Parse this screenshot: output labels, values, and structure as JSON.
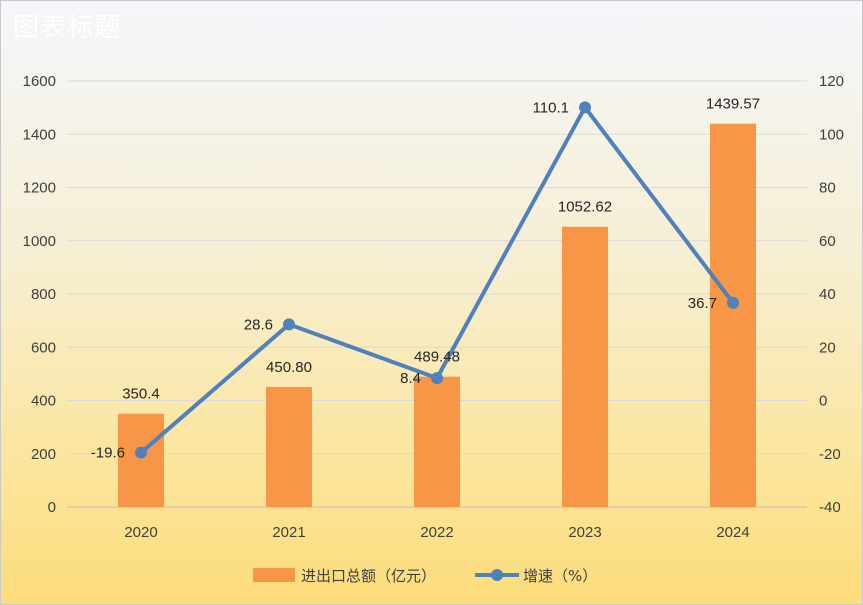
{
  "chart_data": {
    "type": "bar+line",
    "title": "图表标题",
    "categories": [
      "2020",
      "2021",
      "2022",
      "2023",
      "2024"
    ],
    "series": [
      {
        "name": "进出口总额（亿元）",
        "type": "bar",
        "axis": "left",
        "color": "#f79646",
        "values": [
          350.4,
          450.8,
          489.48,
          1052.62,
          1439.57
        ],
        "labels": [
          "350.4",
          "450.80",
          "489.48",
          "1052.62",
          "1439.57"
        ]
      },
      {
        "name": "增速（%）",
        "type": "line",
        "axis": "right",
        "color": "#4f81bd",
        "values": [
          -19.6,
          28.6,
          8.4,
          110.1,
          36.7
        ],
        "labels": [
          "-19.6",
          "28.6",
          "8.4",
          "110.1",
          "36.7"
        ]
      }
    ],
    "y_left": {
      "min": 0,
      "max": 1600,
      "ticks": [
        "0",
        "200",
        "400",
        "600",
        "800",
        "1000",
        "1200",
        "1400",
        "1600"
      ]
    },
    "y_right": {
      "min": -40,
      "max": 120,
      "ticks": [
        "-40",
        "-20",
        "0",
        "20",
        "40",
        "60",
        "80",
        "100",
        "120"
      ]
    },
    "grid": true,
    "legend_position": "bottom"
  }
}
